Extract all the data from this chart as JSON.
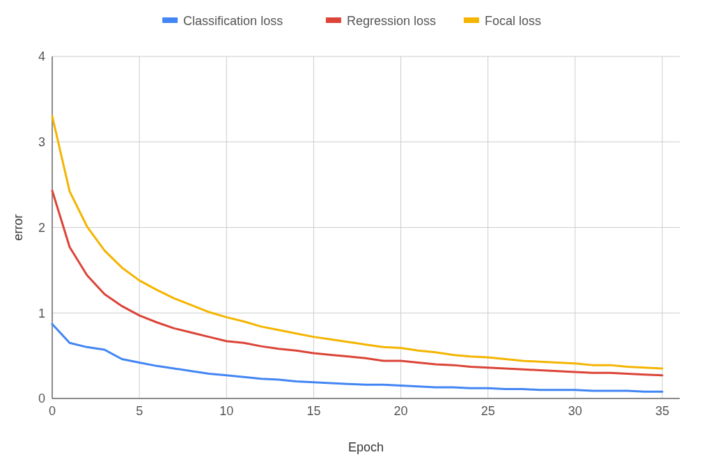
{
  "chart_data": {
    "type": "line",
    "xlabel": "Epoch",
    "ylabel": "error",
    "x": [
      0,
      1,
      2,
      3,
      4,
      5,
      6,
      7,
      8,
      9,
      10,
      11,
      12,
      13,
      14,
      15,
      16,
      17,
      18,
      19,
      20,
      21,
      22,
      23,
      24,
      25,
      26,
      27,
      28,
      29,
      30,
      31,
      32,
      33,
      34,
      35
    ],
    "series": [
      {
        "name": "Classification loss",
        "color": "#4285f4",
        "values": [
          0.87,
          0.65,
          0.6,
          0.57,
          0.46,
          0.42,
          0.38,
          0.35,
          0.32,
          0.29,
          0.27,
          0.25,
          0.23,
          0.22,
          0.2,
          0.19,
          0.18,
          0.17,
          0.16,
          0.16,
          0.15,
          0.14,
          0.13,
          0.13,
          0.12,
          0.12,
          0.11,
          0.11,
          0.1,
          0.1,
          0.1,
          0.09,
          0.09,
          0.09,
          0.08,
          0.08
        ]
      },
      {
        "name": "Regression loss",
        "color": "#db4437",
        "values": [
          2.43,
          1.77,
          1.44,
          1.22,
          1.08,
          0.97,
          0.89,
          0.82,
          0.77,
          0.72,
          0.67,
          0.65,
          0.61,
          0.58,
          0.56,
          0.53,
          0.51,
          0.49,
          0.47,
          0.44,
          0.44,
          0.42,
          0.4,
          0.39,
          0.37,
          0.36,
          0.35,
          0.34,
          0.33,
          0.32,
          0.31,
          0.3,
          0.3,
          0.29,
          0.28,
          0.27
        ]
      },
      {
        "name": "Focal loss",
        "color": "#f4b400",
        "values": [
          3.3,
          2.42,
          2.01,
          1.73,
          1.53,
          1.38,
          1.27,
          1.17,
          1.09,
          1.01,
          0.95,
          0.9,
          0.84,
          0.8,
          0.76,
          0.72,
          0.69,
          0.66,
          0.63,
          0.6,
          0.59,
          0.56,
          0.54,
          0.51,
          0.49,
          0.48,
          0.46,
          0.44,
          0.43,
          0.42,
          0.41,
          0.39,
          0.39,
          0.37,
          0.36,
          0.35
        ]
      }
    ],
    "xlim": [
      0,
      36
    ],
    "xticks": [
      0,
      5,
      10,
      15,
      20,
      25,
      30,
      35
    ],
    "ylim": [
      0,
      4
    ],
    "yticks": [
      0,
      1,
      2,
      3,
      4
    ],
    "grid": true,
    "legend": "top",
    "marker": "none",
    "line_style": "solid"
  }
}
